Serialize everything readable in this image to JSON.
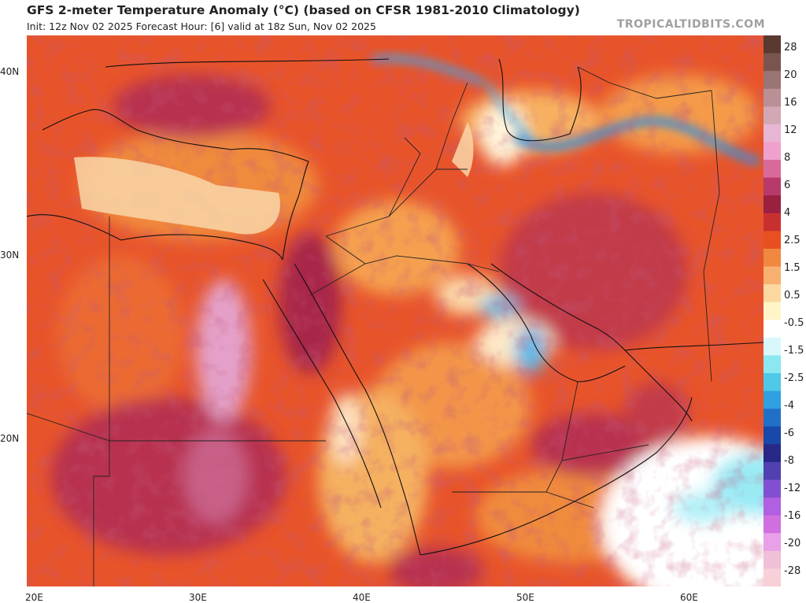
{
  "header": {
    "title": "GFS 2-meter Temperature Anomaly (°C) (based on CFSR 1981-2010 Climatology)",
    "subtitle": "Init: 12z Nov 02 2025   Forecast Hour: [6]   valid at 18z Sun, Nov 02 2025",
    "brand": "TROPICALTIDBITS.COM"
  },
  "map": {
    "region": "Middle East",
    "lon_range": [
      20,
      65
    ],
    "lat_range": [
      12,
      42
    ],
    "lat_ticks": [
      {
        "value": 40,
        "label": "40N"
      },
      {
        "value": 30,
        "label": "30N"
      },
      {
        "value": 20,
        "label": "20N"
      }
    ],
    "lon_ticks": [
      {
        "value": 20,
        "label": "20E"
      },
      {
        "value": 30,
        "label": "30E"
      },
      {
        "value": 40,
        "label": "40E"
      },
      {
        "value": 50,
        "label": "50E"
      },
      {
        "value": 60,
        "label": "60E"
      }
    ]
  },
  "colorbar": {
    "labels": [
      "28",
      "20",
      "16",
      "12",
      "8",
      "6",
      "4",
      "2.5",
      "1.5",
      "0.5",
      "-0.5",
      "-1.5",
      "-2.5",
      "-4",
      "-6",
      "-8",
      "-12",
      "-16",
      "-20",
      "-28"
    ],
    "colors": [
      "#5a3a30",
      "#7a5550",
      "#9a7575",
      "#b89095",
      "#d2a8b5",
      "#e8b5d5",
      "#f0a0cc",
      "#d86a9a",
      "#b83a6a",
      "#9a2040",
      "#c83030",
      "#e85020",
      "#f08840",
      "#f8b070",
      "#fcd8a0",
      "#fff5c8",
      "#ffffff",
      "#d8f8fc",
      "#8ce8f0",
      "#50c8e8",
      "#30a0e0",
      "#2070c8",
      "#1848a8",
      "#282888",
      "#5040b0",
      "#8050d0",
      "#b060e0",
      "#d070e0",
      "#e8a0e8",
      "#f0c0d8",
      "#f8d0d8"
    ]
  }
}
